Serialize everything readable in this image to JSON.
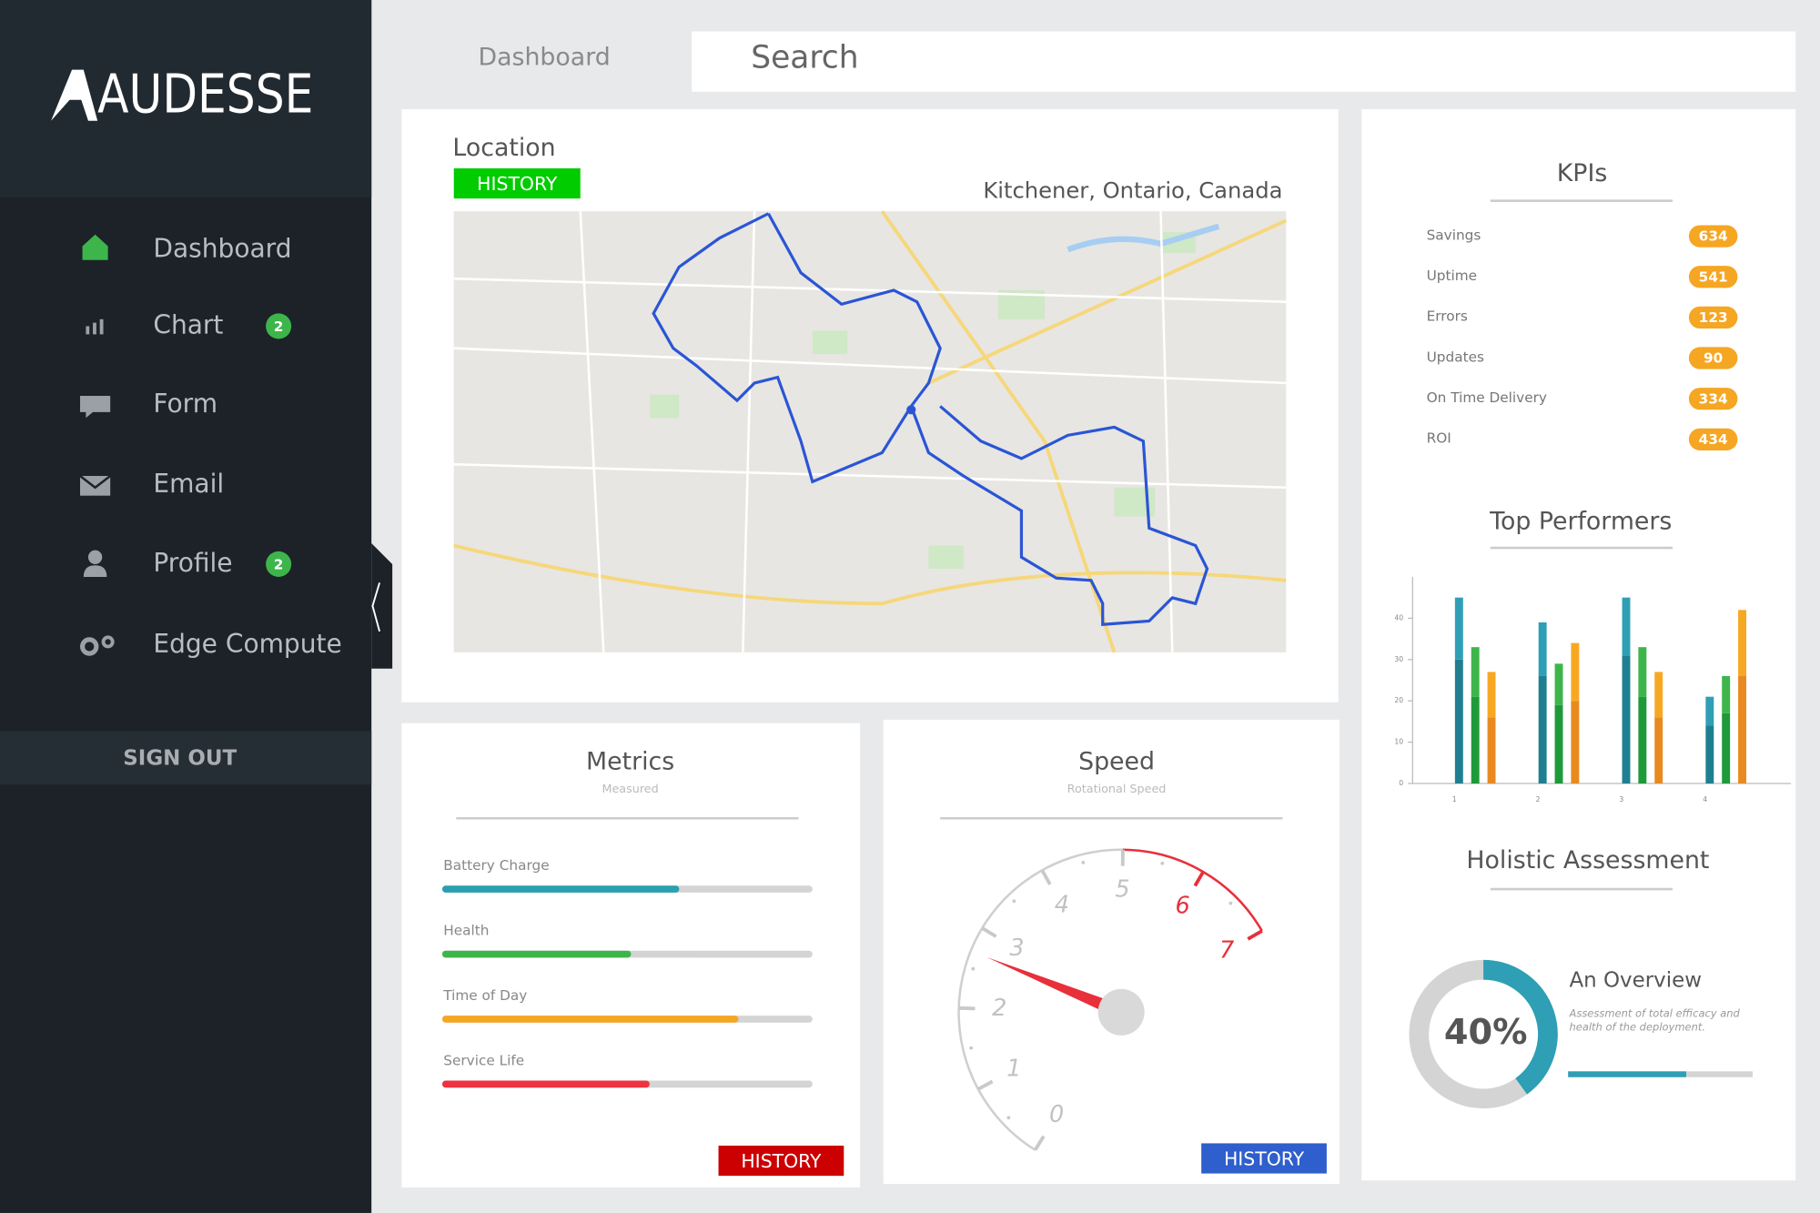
{
  "sidebar": {
    "brand": "AUDESSE",
    "nav": [
      {
        "label": "Dashboard"
      },
      {
        "label": "Chart",
        "badge": 2
      },
      {
        "label": "Form"
      },
      {
        "label": "Email"
      },
      {
        "label": "Profile",
        "badge": 2
      },
      {
        "label": "Edge Compute"
      }
    ],
    "sign_out": "SIGN OUT"
  },
  "header": {
    "tab": "Dashboard",
    "search": "Search"
  },
  "location": {
    "title": "Location",
    "button": "HISTORY",
    "place": "Kitchener, Ontario, Canada"
  },
  "kpis": {
    "title": "KPIs",
    "items": [
      {
        "label": "Savings",
        "value": 634
      },
      {
        "label": "Uptime",
        "value": 541
      },
      {
        "label": "Errors",
        "value": 123
      },
      {
        "label": "Updates",
        "value": 90
      },
      {
        "label": "On Time Delivery",
        "value": 334
      },
      {
        "label": "ROI",
        "value": 434
      }
    ]
  },
  "top_performers": {
    "type": "bar",
    "title": "Top Performers",
    "categories": [
      "1",
      "2",
      "3",
      "4"
    ],
    "series": [
      {
        "color": "#1f7f91",
        "values": [
          30,
          26,
          31,
          14
        ]
      },
      {
        "color": "#2e9fb5",
        "values": [
          15,
          13,
          14,
          7
        ]
      },
      {
        "color": "#1e9a3a",
        "values": [
          21,
          19,
          21,
          17
        ]
      },
      {
        "color": "#3db54a",
        "values": [
          12,
          10,
          12,
          9
        ]
      },
      {
        "color": "#e88a1f",
        "values": [
          16,
          20,
          16,
          26
        ]
      },
      {
        "color": "#f7a823",
        "values": [
          11,
          14,
          11,
          16
        ]
      }
    ],
    "ylim": [
      0,
      50
    ],
    "yticks": [
      0,
      10,
      20,
      30,
      40
    ]
  },
  "holistic": {
    "title": "Holistic Assessment",
    "value": 40,
    "value_label": "40%",
    "heading": "An Overview",
    "text": "Assessment of total efficacy and health of the deployment.",
    "progress": 64,
    "xlim": [
      0,
      100
    ]
  },
  "metrics": {
    "title": "Metrics",
    "subtitle": "Measured",
    "button": "HISTORY",
    "xlim": [
      0,
      100
    ],
    "items": [
      {
        "label": "Battery Charge",
        "value": 64,
        "color": "#2a9fb0"
      },
      {
        "label": "Health",
        "value": 51,
        "color": "#3db54a"
      },
      {
        "label": "Time of Day",
        "value": 80,
        "color": "#f5a623"
      },
      {
        "label": "Service Life",
        "value": 56,
        "color": "#ee3340"
      }
    ]
  },
  "speed": {
    "title": "Speed",
    "subtitle": "Rotational Speed",
    "button": "HISTORY",
    "value": 2.7,
    "range": [
      0,
      7
    ],
    "ticks": [
      0,
      1,
      2,
      3,
      4,
      5,
      6,
      7
    ],
    "redline_from": 5
  }
}
